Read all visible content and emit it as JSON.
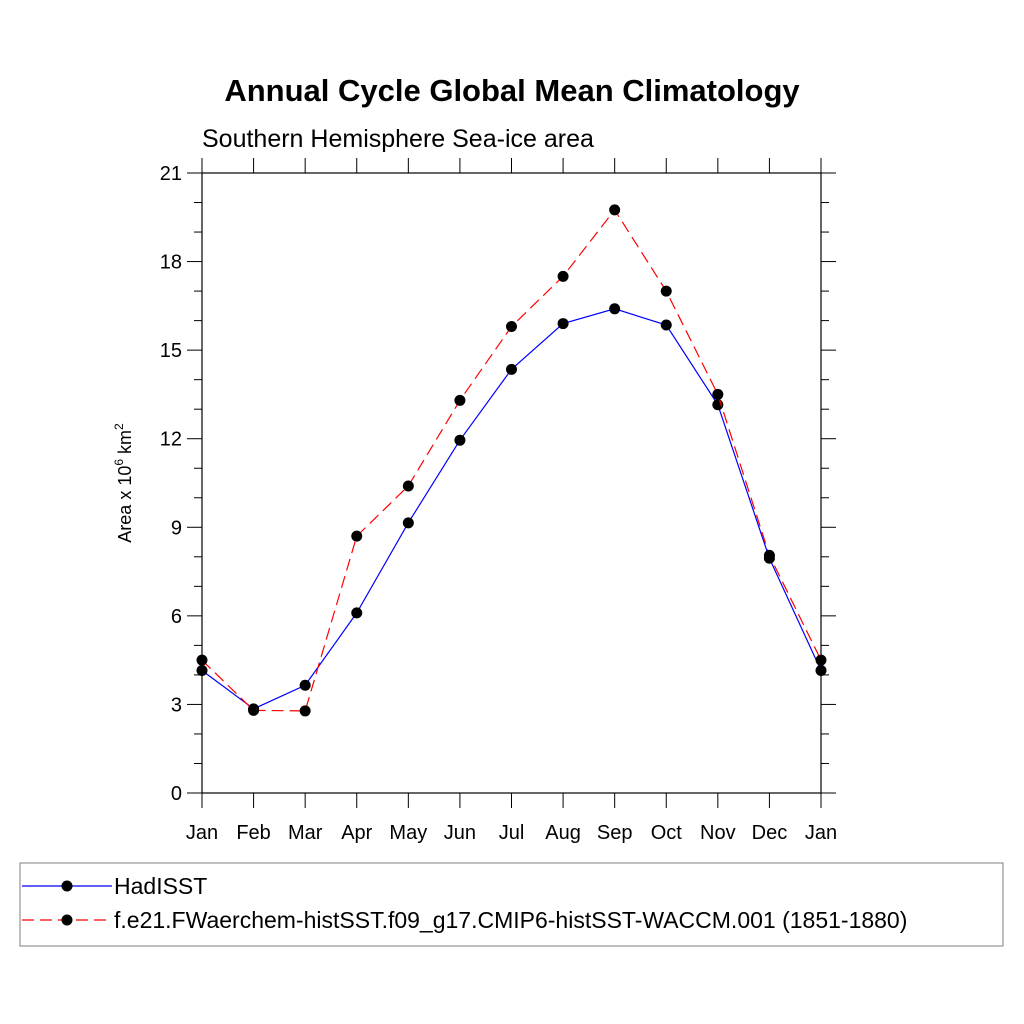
{
  "chart_data": {
    "type": "line",
    "title": "Annual Cycle Global Mean Climatology",
    "subtitle": "Southern Hemisphere Sea-ice area",
    "ylabel": {
      "base": "Area x 10",
      "exp": "6",
      "unit": " km",
      "unit_exp": "2"
    },
    "xlabel": "",
    "categories": [
      "Jan",
      "Feb",
      "Mar",
      "Apr",
      "May",
      "Jun",
      "Jul",
      "Aug",
      "Sep",
      "Oct",
      "Nov",
      "Dec",
      "Jan"
    ],
    "ylim": [
      0,
      21
    ],
    "yticks": [
      0,
      3,
      6,
      9,
      12,
      15,
      18,
      21
    ],
    "series": [
      {
        "name": "HadISST",
        "color": "#0000ff",
        "dash": "solid",
        "values": [
          4.15,
          2.85,
          3.65,
          6.1,
          9.15,
          11.95,
          14.35,
          15.9,
          16.4,
          15.85,
          13.15,
          7.95,
          4.15
        ]
      },
      {
        "name": "f.e21.FWaerchem-histSST.f09_g17.CMIP6-histSST-WACCM.001 (1851-1880)",
        "color": "#ff0000",
        "dash": "dashed",
        "values": [
          4.5,
          2.8,
          2.78,
          8.7,
          10.4,
          13.3,
          15.8,
          17.5,
          19.75,
          17.0,
          13.5,
          8.05,
          4.5
        ]
      }
    ],
    "legend": "bottom"
  }
}
